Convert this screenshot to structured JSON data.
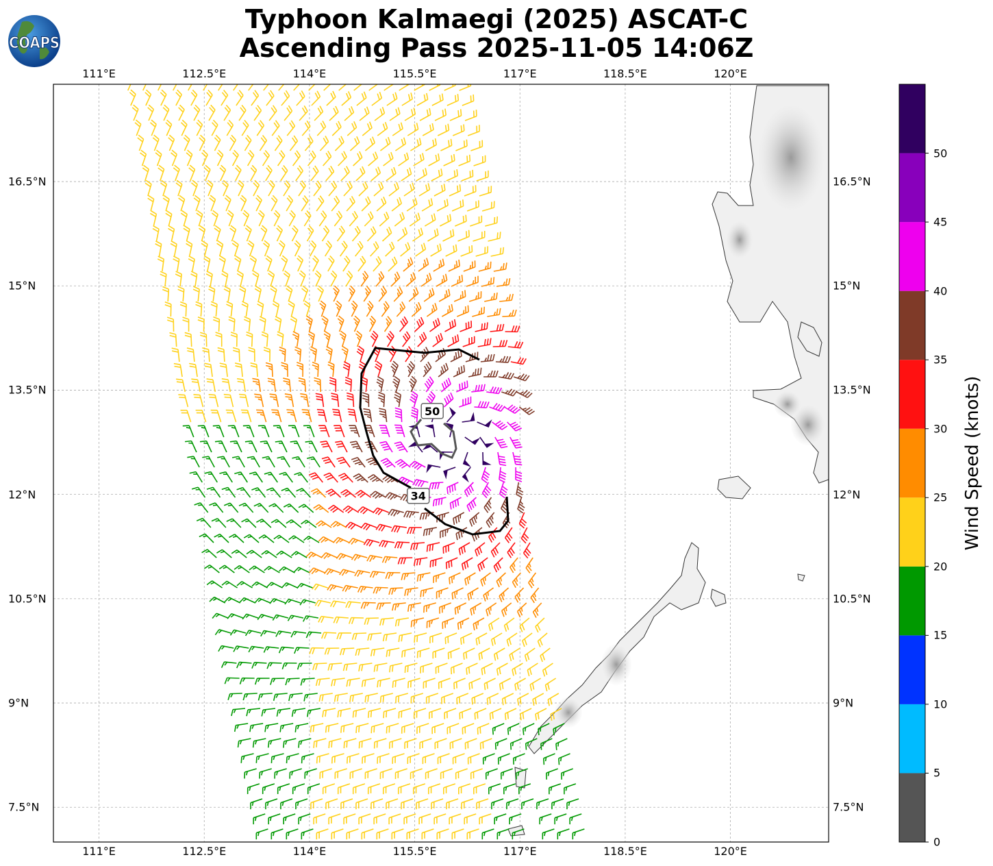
{
  "title": {
    "line1": "Typhoon Kalmaegi (2025) ASCAT-C",
    "line2": "Ascending Pass 2025-11-05 14:06Z"
  },
  "logo": {
    "text": "COAPS"
  },
  "map": {
    "lon_range": [
      110.35,
      121.4
    ],
    "lat_range": [
      7.0,
      17.9
    ],
    "lon_ticks": [
      {
        "value": 111.0,
        "label": "111°E"
      },
      {
        "value": 112.5,
        "label": "112.5°E"
      },
      {
        "value": 114.0,
        "label": "114°E"
      },
      {
        "value": 115.5,
        "label": "115.5°E"
      },
      {
        "value": 117.0,
        "label": "117°E"
      },
      {
        "value": 118.5,
        "label": "118.5°E"
      },
      {
        "value": 120.0,
        "label": "120°E"
      }
    ],
    "lat_ticks": [
      {
        "value": 16.5,
        "label": "16.5°N"
      },
      {
        "value": 15.0,
        "label": "15°N"
      },
      {
        "value": 13.5,
        "label": "13.5°N"
      },
      {
        "value": 12.0,
        "label": "12°N"
      },
      {
        "value": 10.5,
        "label": "10.5°N"
      },
      {
        "value": 9.0,
        "label": "9°N"
      },
      {
        "value": 7.5,
        "label": "7.5°N"
      }
    ],
    "storm_center": {
      "lon": 116.1,
      "lat": 12.75
    },
    "contour_labels": [
      {
        "label": "50",
        "lon": 115.75,
        "lat": 13.2
      },
      {
        "label": "34",
        "lon": 115.55,
        "lat": 11.98
      }
    ]
  },
  "colorbar": {
    "title": "Wind Speed (knots)",
    "range": [
      0,
      55
    ],
    "tick_labels": [
      "0",
      "5",
      "10",
      "15",
      "20",
      "25",
      "30",
      "35",
      "40",
      "45",
      "50"
    ],
    "bins": [
      {
        "min": 0,
        "max": 5,
        "color": "#555555"
      },
      {
        "min": 5,
        "max": 10,
        "color": "#00bbff"
      },
      {
        "min": 10,
        "max": 15,
        "color": "#0033ff"
      },
      {
        "min": 15,
        "max": 20,
        "color": "#009900"
      },
      {
        "min": 20,
        "max": 25,
        "color": "#ffd11a"
      },
      {
        "min": 25,
        "max": 30,
        "color": "#ff8c00"
      },
      {
        "min": 30,
        "max": 35,
        "color": "#ff1111"
      },
      {
        "min": 35,
        "max": 40,
        "color": "#7f3a28"
      },
      {
        "min": 40,
        "max": 45,
        "color": "#ee00ee"
      },
      {
        "min": 45,
        "max": 50,
        "color": "#8800bb"
      },
      {
        "min": 50,
        "max": 55,
        "color": "#300060"
      }
    ]
  }
}
